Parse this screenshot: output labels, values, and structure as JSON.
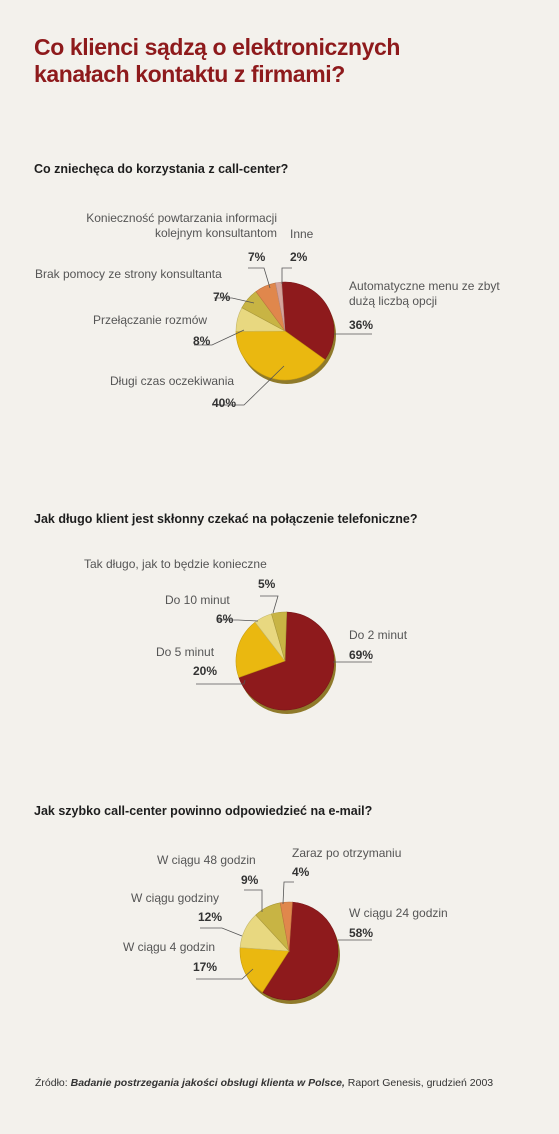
{
  "title": "Co klienci sądzą o elektronicznych kanałach kontaktu z firmami?",
  "source": {
    "prefix": "Źródło: ",
    "italic": "Badanie postrzegania jakości obsługi klienta w Polsce,",
    "suffix": " Raport Genesis, grudzień 2003"
  },
  "colors": {
    "dark_red": "#8e1a1c",
    "gold": "#eab810",
    "pale": "#e8d880",
    "olive": "#c8b444",
    "orange": "#e0874c",
    "rose": "#d6a49c"
  },
  "chart_data": [
    {
      "type": "pie",
      "title": "Co zniechęca do korzystania z call-center?",
      "slices": [
        {
          "label": "Automatyczne menu ze zbyt dużą liczbą opcji",
          "value": 36,
          "display": "36%",
          "color": "#8e1a1c"
        },
        {
          "label": "Długi czas oczekiwania",
          "value": 40,
          "display": "40%",
          "color": "#eab810"
        },
        {
          "label": "Przełączanie rozmów",
          "value": 8,
          "display": "8%",
          "color": "#e8d880"
        },
        {
          "label": "Brak pomocy ze strony konsultanta",
          "value": 7,
          "display": "7%",
          "color": "#c8b444"
        },
        {
          "label": "Konieczność powtarzania informacji kolejnym konsultantom",
          "value": 7,
          "display": "7%",
          "color": "#e0874c"
        },
        {
          "label": "Inne",
          "value": 2,
          "display": "2%",
          "color": "#d6a49c"
        }
      ]
    },
    {
      "type": "pie",
      "title": "Jak długo klient jest skłonny czekać na połączenie telefoniczne?",
      "slices": [
        {
          "label": "Do 2 minut",
          "value": 69,
          "display": "69%",
          "color": "#8e1a1c"
        },
        {
          "label": "Do 5 minut",
          "value": 20,
          "display": "20%",
          "color": "#eab810"
        },
        {
          "label": "Do 10 minut",
          "value": 6,
          "display": "6%",
          "color": "#e8d880"
        },
        {
          "label": "Tak długo, jak to będzie konieczne",
          "value": 5,
          "display": "5%",
          "color": "#c8b444"
        }
      ]
    },
    {
      "type": "pie",
      "title": "Jak szybko call-center powinno odpowiedzieć na e-mail?",
      "slices": [
        {
          "label": "W ciągu 24 godzin",
          "value": 58,
          "display": "58%",
          "color": "#8e1a1c"
        },
        {
          "label": "W ciągu 4 godzin",
          "value": 17,
          "display": "17%",
          "color": "#eab810"
        },
        {
          "label": "W ciągu godziny",
          "value": 12,
          "display": "12%",
          "color": "#e8d880"
        },
        {
          "label": "W ciągu 48 godzin",
          "value": 9,
          "display": "9%",
          "color": "#c8b444"
        },
        {
          "label": "Zaraz po otrzymaniu",
          "value": 4,
          "display": "4%",
          "color": "#e0874c"
        }
      ]
    }
  ]
}
